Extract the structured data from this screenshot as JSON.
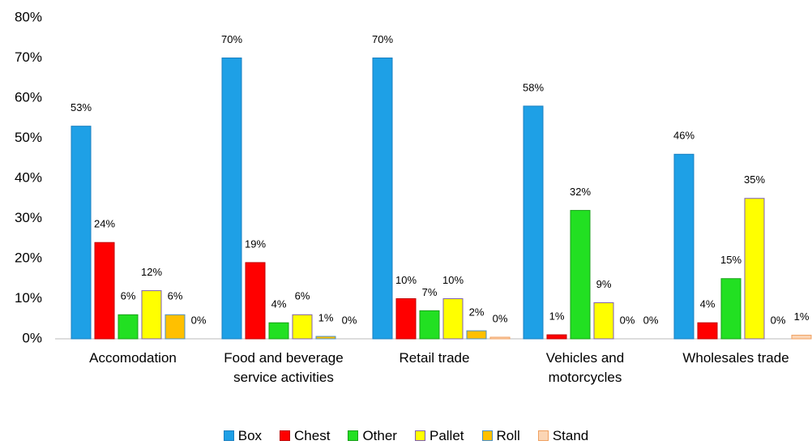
{
  "chart_data": {
    "type": "bar",
    "categories": [
      "Accomodation",
      "Food and beverage service activities",
      "Retail trade",
      "Vehicles and motorcycles",
      "Wholesales trade"
    ],
    "series": [
      {
        "name": "Box",
        "color": "#1ea0e6",
        "stroke": "#1a7fc0",
        "values": [
          53,
          70,
          70,
          58,
          46
        ],
        "value_labels": [
          "53%",
          "70%",
          "70%",
          "58%",
          "46%"
        ]
      },
      {
        "name": "Chest",
        "color": "#ff0000",
        "stroke": "#c00000",
        "values": [
          24,
          19,
          10,
          1,
          4
        ],
        "value_labels": [
          "24%",
          "19%",
          "10%",
          "1%",
          "4%"
        ]
      },
      {
        "name": "Other",
        "color": "#22e022",
        "stroke": "#18a018",
        "values": [
          6,
          4,
          7,
          32,
          15
        ],
        "value_labels": [
          "6%",
          "4%",
          "7%",
          "32%",
          "15%"
        ]
      },
      {
        "name": "Pallet",
        "color": "#ffff00",
        "stroke": "#7f5fb0",
        "values": [
          12,
          6,
          10,
          9,
          35
        ],
        "value_labels": [
          "12%",
          "6%",
          "10%",
          "9%",
          "35%"
        ]
      },
      {
        "name": "Roll",
        "color": "#ffc000",
        "stroke": "#4a90c8",
        "values": [
          6,
          0.6,
          2,
          0,
          0
        ],
        "value_labels": [
          "6%",
          "1%",
          "2%",
          "0%",
          "0%"
        ]
      },
      {
        "name": "Stand",
        "color": "#fbd5b5",
        "stroke": "#f0a060",
        "values": [
          0,
          0,
          0.4,
          0,
          0.9
        ],
        "value_labels": [
          "0%",
          "0%",
          "0%",
          "0%",
          "1%"
        ]
      }
    ],
    "ylim": [
      0,
      80
    ],
    "yticks": [
      {
        "value": 0,
        "label": "0%"
      },
      {
        "value": 10,
        "label": "10%"
      },
      {
        "value": 20,
        "label": "20%"
      },
      {
        "value": 30,
        "label": "30%"
      },
      {
        "value": 40,
        "label": "40%"
      },
      {
        "value": 50,
        "label": "50%"
      },
      {
        "value": 60,
        "label": "60%"
      },
      {
        "value": 70,
        "label": "70%"
      },
      {
        "value": 80,
        "label": "80%"
      }
    ],
    "grid": false,
    "legend": "bottom"
  }
}
